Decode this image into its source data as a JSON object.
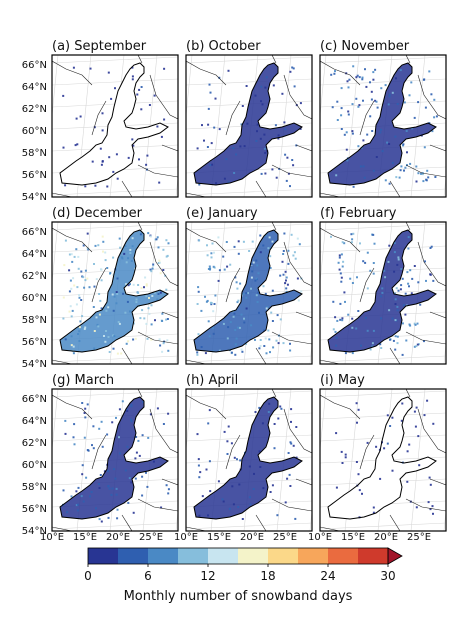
{
  "panels": [
    {
      "title": "(a) September",
      "intensity": 0.03
    },
    {
      "title": "(b) October",
      "intensity": 0.12
    },
    {
      "title": "(c) November",
      "intensity": 0.3
    },
    {
      "title": "(d) December",
      "intensity": 0.6
    },
    {
      "title": "(e) January",
      "intensity": 0.48
    },
    {
      "title": "(f) February",
      "intensity": 0.35
    },
    {
      "title": "(g) March",
      "intensity": 0.22
    },
    {
      "title": "(h) April",
      "intensity": 0.1
    },
    {
      "title": "(i) May",
      "intensity": 0.04
    }
  ],
  "lat_ticks": [
    "66°N",
    "64°N",
    "62°N",
    "60°N",
    "58°N",
    "56°N",
    "54°N"
  ],
  "lon_ticks": [
    "10°E",
    "15°E",
    "20°E",
    "25°E"
  ],
  "colorbar": {
    "label": "Monthly number of snowband days",
    "ticks": [
      "0",
      "6",
      "12",
      "18",
      "24",
      "30"
    ],
    "min": 0,
    "max": 30,
    "extend": "max",
    "colors": [
      "#283593",
      "#2f5fb0",
      "#4a89c5",
      "#86bedc",
      "#c8e5f0",
      "#f4f3c9",
      "#fbd889",
      "#f7a65b",
      "#ea6b3f",
      "#cf3a2c",
      "#a2152a"
    ]
  }
}
